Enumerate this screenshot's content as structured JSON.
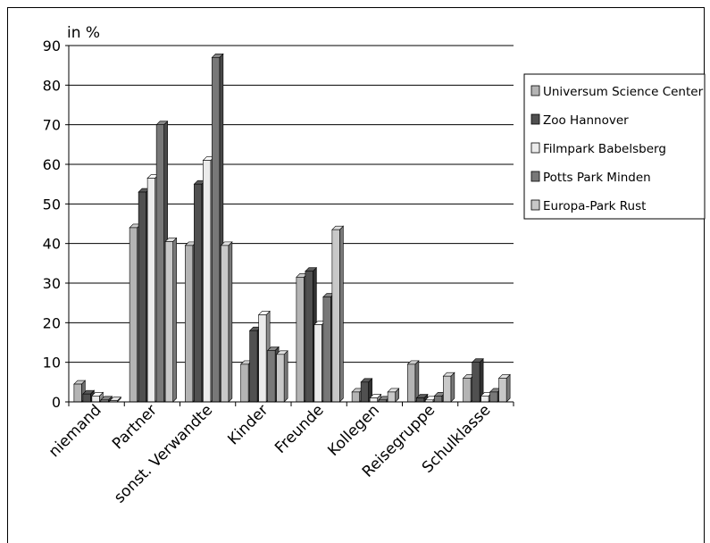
{
  "chart_data": {
    "type": "bar",
    "title": "",
    "ylabel": "in %",
    "xlabel": "",
    "ylim": [
      0,
      90
    ],
    "yticks": [
      0,
      10,
      20,
      30,
      40,
      50,
      60,
      70,
      80,
      90
    ],
    "grid": true,
    "legend_position": "right",
    "categories": [
      "niemand",
      "Partner",
      "sonst. Verwandte",
      "Kinder",
      "Freunde",
      "Kollegen",
      "Reisegruppe",
      "Schulklasse"
    ],
    "series": [
      {
        "name": "Universum Science Center",
        "color": "#b4b4b4",
        "values": [
          4.5,
          44,
          39.5,
          9.5,
          31.5,
          2.5,
          9.5,
          6
        ]
      },
      {
        "name": "Zoo Hannover",
        "color": "#505050",
        "values": [
          2,
          53,
          55,
          18,
          33,
          5,
          1,
          10
        ]
      },
      {
        "name": "Filmpark Babelsberg",
        "color": "#ebebeb",
        "values": [
          1.5,
          56.5,
          61,
          22,
          19.5,
          1,
          0.5,
          1.5
        ]
      },
      {
        "name": "Potts Park Minden",
        "color": "#787878",
        "values": [
          0.5,
          70,
          87,
          13,
          26.5,
          0.5,
          1.5,
          2.5
        ]
      },
      {
        "name": "Europa-Park Rust",
        "color": "#c8c8c8",
        "values": [
          0.3,
          40.5,
          39.5,
          12,
          43.5,
          2.5,
          6.5,
          6
        ]
      }
    ]
  }
}
